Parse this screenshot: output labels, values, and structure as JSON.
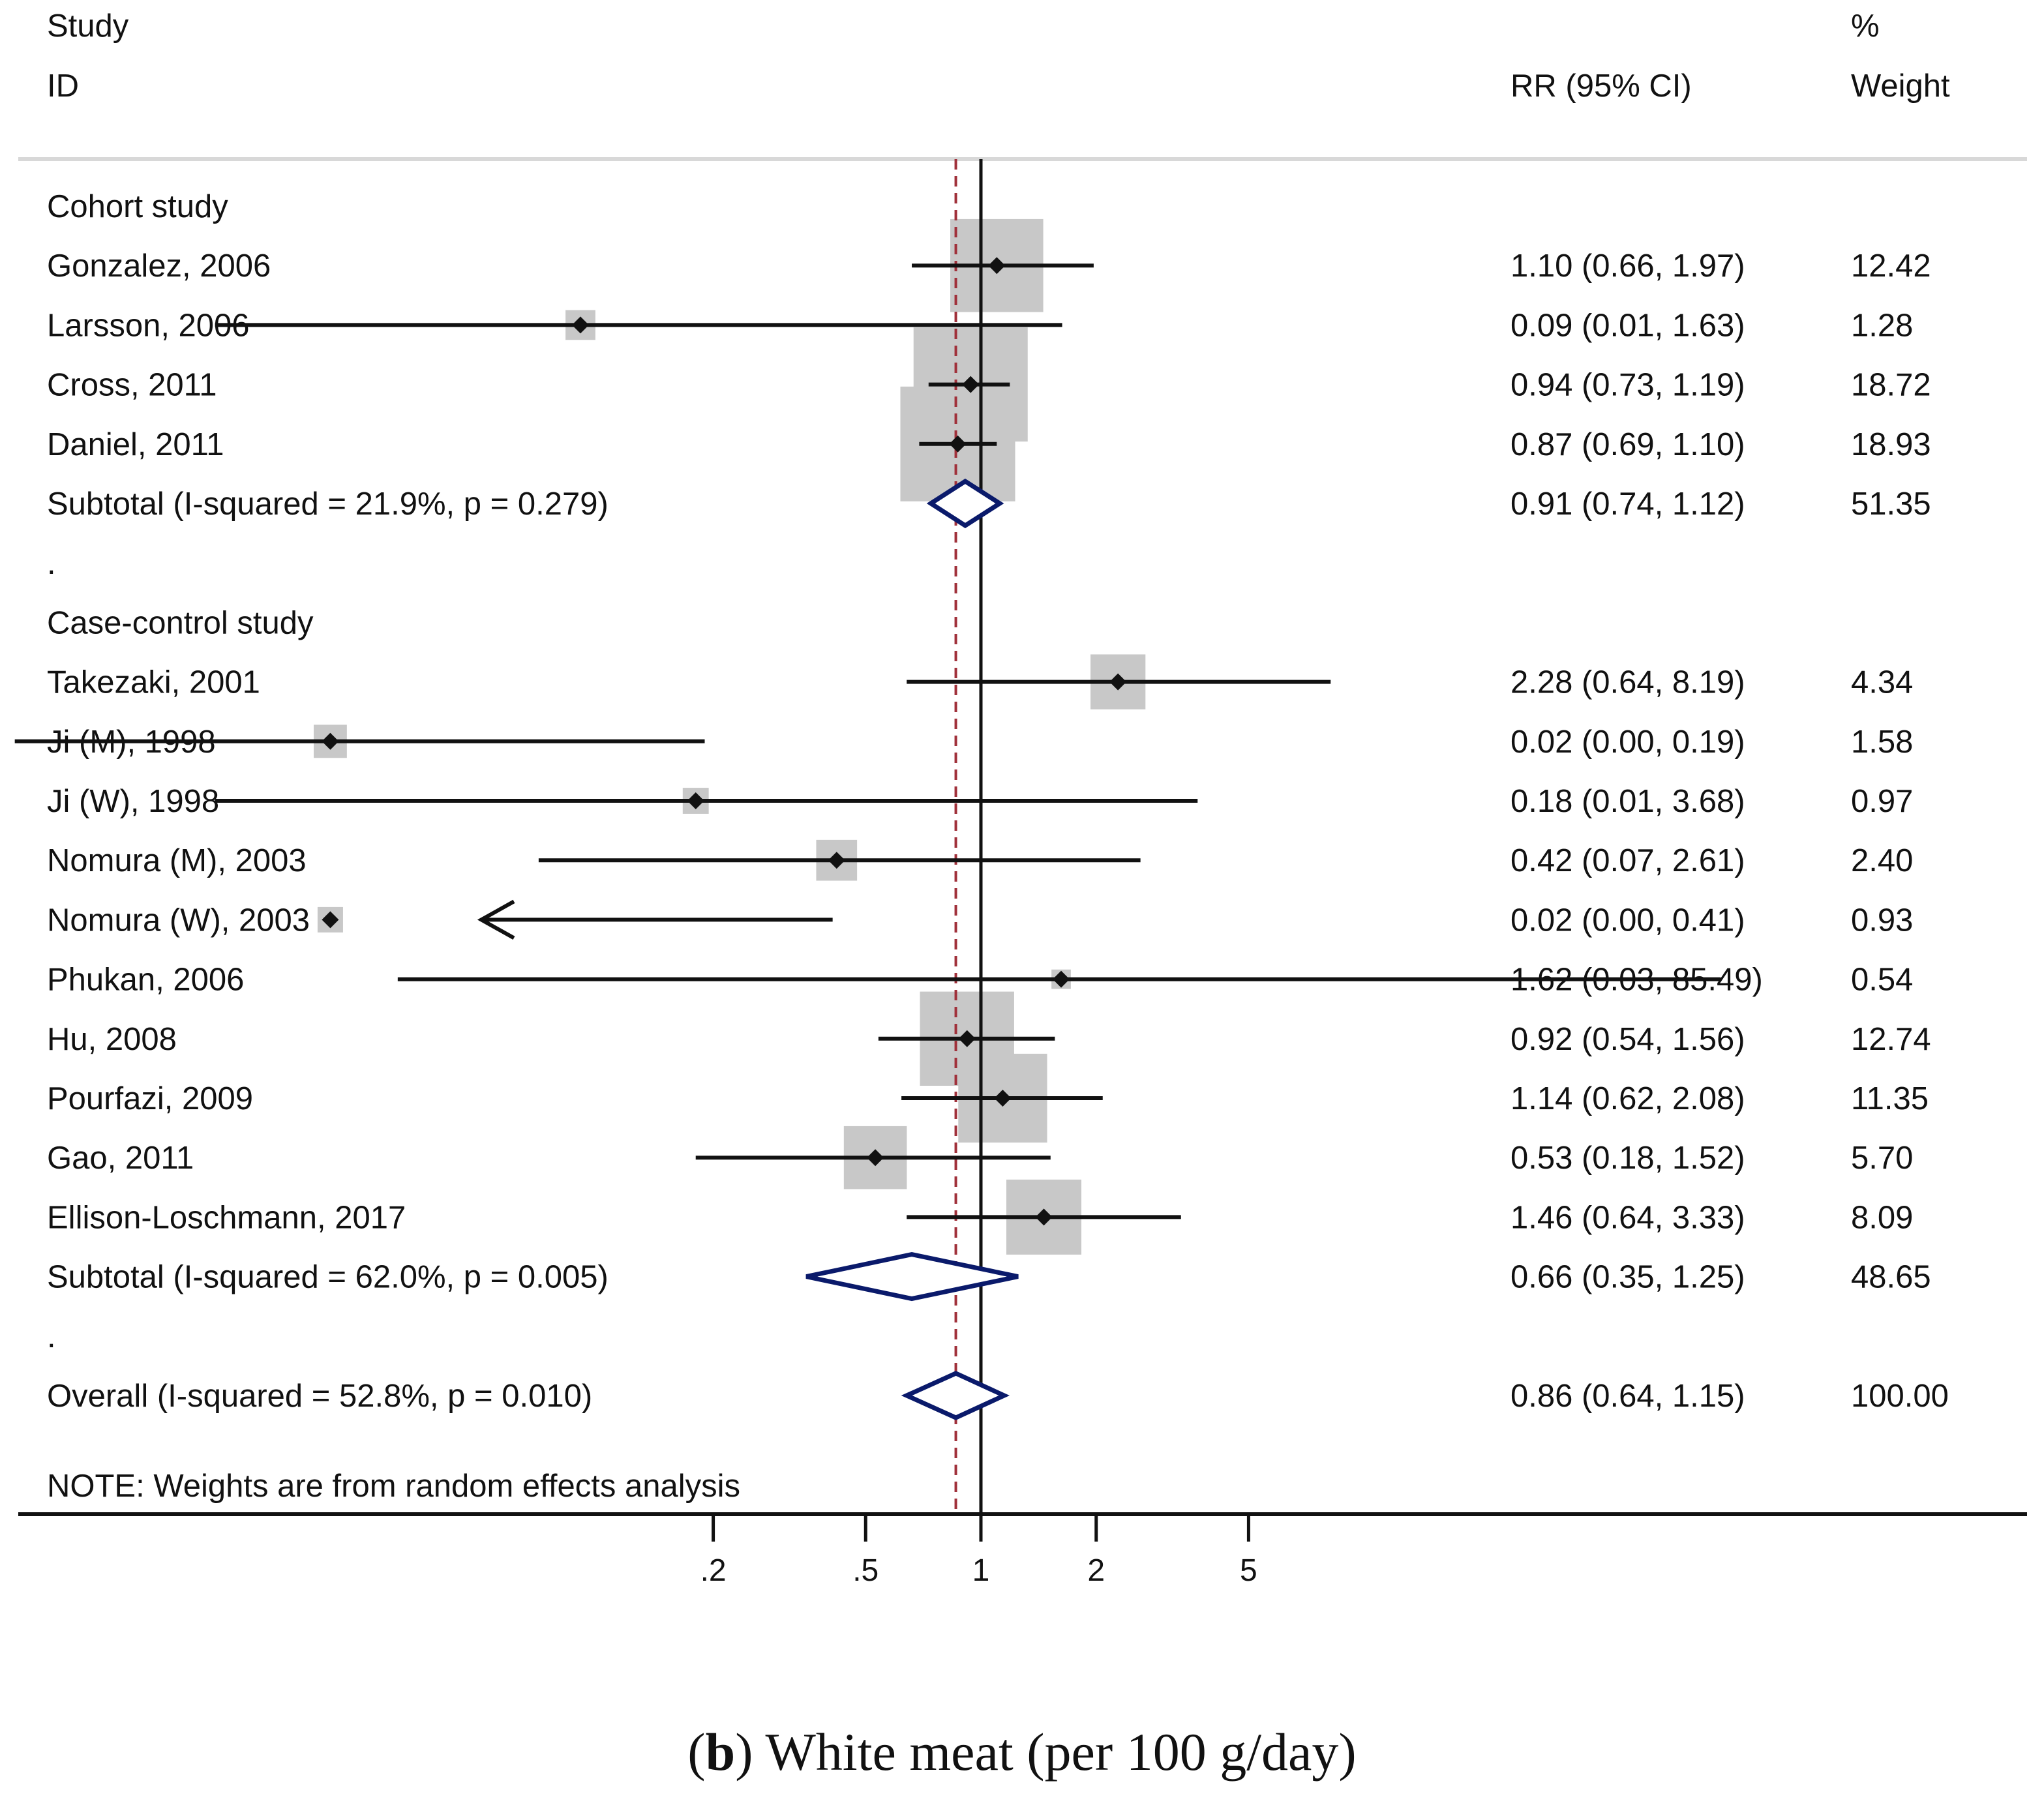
{
  "chart_data": {
    "type": "forest",
    "scale": "log",
    "headers": {
      "study_top": "Study",
      "study_bottom": "ID",
      "rr": "RR (95% CI)",
      "weight_top": "%",
      "weight_bottom": "Weight"
    },
    "rows": [
      {
        "kind": "group",
        "label": "Cohort study"
      },
      {
        "kind": "study",
        "label": "Gonzalez, 2006",
        "rr": 1.1,
        "lo": 0.66,
        "hi": 1.97,
        "ci_text": "1.10 (0.66, 1.97)",
        "weight": 12.42,
        "weight_text": "12.42"
      },
      {
        "kind": "study",
        "label": "Larsson, 2006",
        "rr": 0.09,
        "lo": 0.01,
        "hi": 1.63,
        "ci_text": "0.09 (0.01, 1.63)",
        "weight": 1.28,
        "weight_text": "1.28"
      },
      {
        "kind": "study",
        "label": "Cross, 2011",
        "rr": 0.94,
        "lo": 0.73,
        "hi": 1.19,
        "ci_text": "0.94 (0.73, 1.19)",
        "weight": 18.72,
        "weight_text": "18.72"
      },
      {
        "kind": "study",
        "label": "Daniel, 2011",
        "rr": 0.87,
        "lo": 0.69,
        "hi": 1.1,
        "ci_text": "0.87 (0.69, 1.10)",
        "weight": 18.93,
        "weight_text": "18.93"
      },
      {
        "kind": "subtotal",
        "label": "Subtotal  (I-squared = 21.9%, p = 0.279)",
        "rr": 0.91,
        "lo": 0.74,
        "hi": 1.12,
        "ci_text": "0.91 (0.74, 1.12)",
        "weight_text": "51.35"
      },
      {
        "kind": "dot",
        "label": "."
      },
      {
        "kind": "group",
        "label": "Case-control study"
      },
      {
        "kind": "study",
        "label": "Takezaki, 2001",
        "rr": 2.28,
        "lo": 0.64,
        "hi": 8.19,
        "ci_text": "2.28 (0.64, 8.19)",
        "weight": 4.34,
        "weight_text": "4.34"
      },
      {
        "kind": "study",
        "label": "Ji (M), 1998",
        "rr": 0.02,
        "lo": 0.0,
        "hi": 0.19,
        "ci_text": "0.02 (0.00, 0.19)",
        "weight": 1.58,
        "weight_text": "1.58"
      },
      {
        "kind": "study",
        "label": "Ji (W), 1998",
        "rr": 0.18,
        "lo": 0.01,
        "hi": 3.68,
        "ci_text": "0.18 (0.01, 3.68)",
        "weight": 0.97,
        "weight_text": "0.97"
      },
      {
        "kind": "study",
        "label": "Nomura (M), 2003",
        "rr": 0.42,
        "lo": 0.07,
        "hi": 2.61,
        "ci_text": "0.42 (0.07, 2.61)",
        "weight": 2.4,
        "weight_text": "2.40"
      },
      {
        "kind": "study",
        "label": "Nomura (W), 2003",
        "rr": 0.02,
        "lo": 0.0,
        "hi": 0.41,
        "ci_text": "0.02 (0.00, 0.41)",
        "weight": 0.93,
        "weight_text": "0.93",
        "arrow_left": true
      },
      {
        "kind": "study",
        "label": "Phukan, 2006",
        "rr": 1.62,
        "lo": 0.03,
        "hi": 85.49,
        "ci_text": "1.62 (0.03, 85.49)",
        "weight": 0.54,
        "weight_text": "0.54"
      },
      {
        "kind": "study",
        "label": "Hu, 2008",
        "rr": 0.92,
        "lo": 0.54,
        "hi": 1.56,
        "ci_text": "0.92 (0.54, 1.56)",
        "weight": 12.74,
        "weight_text": "12.74"
      },
      {
        "kind": "study",
        "label": "Pourfazi, 2009",
        "rr": 1.14,
        "lo": 0.62,
        "hi": 2.08,
        "ci_text": "1.14 (0.62, 2.08)",
        "weight": 11.35,
        "weight_text": "11.35"
      },
      {
        "kind": "study",
        "label": "Gao, 2011",
        "rr": 0.53,
        "lo": 0.18,
        "hi": 1.52,
        "ci_text": "0.53 (0.18, 1.52)",
        "weight": 5.7,
        "weight_text": "5.70"
      },
      {
        "kind": "study",
        "label": "Ellison-Loschmann, 2017",
        "rr": 1.46,
        "lo": 0.64,
        "hi": 3.33,
        "ci_text": "1.46 (0.64, 3.33)",
        "weight": 8.09,
        "weight_text": "8.09"
      },
      {
        "kind": "subtotal",
        "label": "Subtotal  (I-squared = 62.0%, p = 0.005)",
        "rr": 0.66,
        "lo": 0.35,
        "hi": 1.25,
        "ci_text": "0.66 (0.35, 1.25)",
        "weight_text": "48.65"
      },
      {
        "kind": "dot",
        "label": "."
      },
      {
        "kind": "overall",
        "label": "Overall  (I-squared = 52.8%, p = 0.010)",
        "rr": 0.86,
        "lo": 0.64,
        "hi": 1.15,
        "ci_text": "0.86 (0.64, 1.15)",
        "weight_text": "100.00"
      }
    ],
    "note": "NOTE: Weights are from random effects analysis",
    "x_ticks": [
      0.2,
      0.5,
      1,
      2,
      5
    ],
    "x_tick_labels": [
      ".2",
      ".5",
      "1",
      "2",
      "5"
    ],
    "null_value": 1,
    "overall_value": 0.86
  },
  "caption": {
    "bold": "b",
    "text": "White meat (per 100 g/day)"
  },
  "colors": {
    "text": "#111111",
    "box": "#c8c8c8",
    "diamond": "#0a1a6b",
    "overall_line": "#a0303a",
    "separator": "#d8d8d8"
  }
}
